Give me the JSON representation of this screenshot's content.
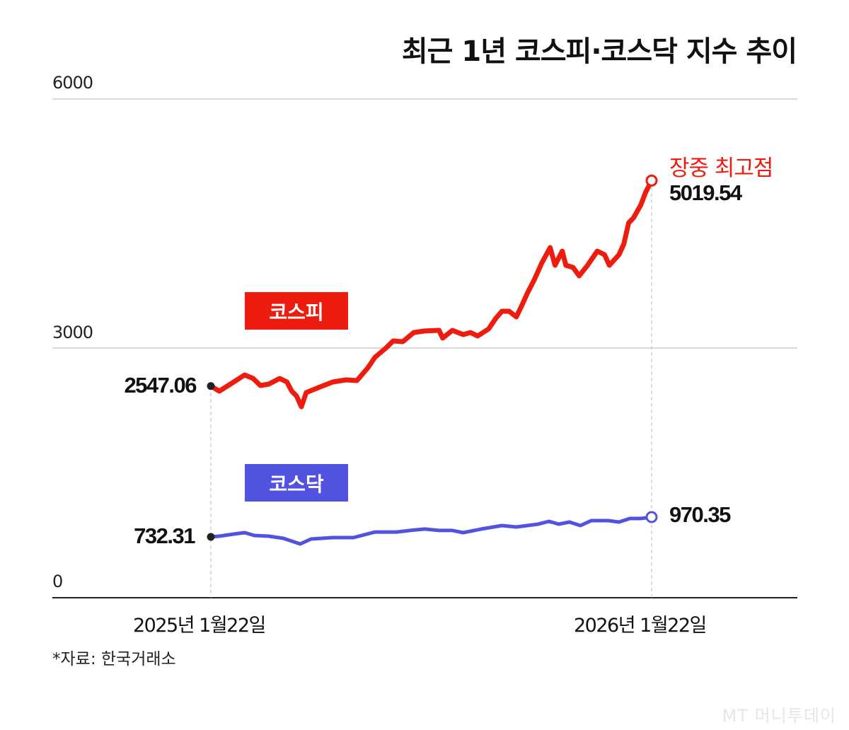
{
  "title": "최근 1년 코스피·코스닥 지수 추이",
  "source": "*자료: 한국거래소",
  "logo": "MT 머니투데이",
  "colors": {
    "kospi": "#ee1c0e",
    "kosdaq": "#5252e0",
    "grid": "#cccccc",
    "axis": "#222222"
  },
  "chart_data": {
    "type": "line",
    "ylim": [
      0,
      6000
    ],
    "yticks": [
      "6000",
      "3000",
      "0"
    ],
    "xticks": [
      "2025년 1월22일",
      "2026년 1월22일"
    ],
    "grid": true,
    "annotation": "장중 최고점",
    "series": [
      {
        "name": "코스피",
        "start_label": "2547.06",
        "end_label": "5019.54",
        "x": [
          "2025-01-22",
          "2025-01-29",
          "2025-02-10",
          "2025-02-19",
          "2025-02-26",
          "2025-03-04",
          "2025-03-11",
          "2025-03-20",
          "2025-03-26",
          "2025-03-30",
          "2025-04-03",
          "2025-04-07",
          "2025-04-11",
          "2025-04-21",
          "2025-05-03",
          "2025-05-14",
          "2025-05-23",
          "2025-06-01",
          "2025-06-07",
          "2025-06-16",
          "2025-06-22",
          "2025-06-30",
          "2025-07-09",
          "2025-07-18",
          "2025-07-30",
          "2025-08-02",
          "2025-08-10",
          "2025-08-19",
          "2025-08-25",
          "2025-08-31",
          "2025-09-09",
          "2025-09-15",
          "2025-09-20",
          "2025-09-26",
          "2025-10-02",
          "2025-10-07",
          "2025-10-11",
          "2025-10-17",
          "2025-10-23",
          "2025-10-30",
          "2025-11-03",
          "2025-11-09",
          "2025-11-12",
          "2025-11-18",
          "2025-11-23",
          "2025-11-30",
          "2025-12-08",
          "2025-12-14",
          "2025-12-18",
          "2025-12-26",
          "2025-12-30",
          "2026-01-03",
          "2026-01-07",
          "2026-01-13",
          "2026-01-17",
          "2026-01-22"
        ],
        "values": [
          2547.06,
          2485,
          2596,
          2681,
          2638,
          2553,
          2570,
          2638,
          2596,
          2485,
          2426,
          2298,
          2468,
          2528,
          2596,
          2621,
          2613,
          2766,
          2894,
          3004,
          3089,
          3081,
          3191,
          3209,
          3217,
          3123,
          3217,
          3166,
          3191,
          3149,
          3234,
          3362,
          3447,
          3447,
          3379,
          3532,
          3660,
          3830,
          4026,
          4213,
          4000,
          4170,
          4000,
          3974,
          3872,
          4000,
          4170,
          4128,
          4000,
          4128,
          4255,
          4511,
          4570,
          4723,
          4877,
          5019.54
        ]
      },
      {
        "name": "코스닥",
        "start_label": "732.31",
        "end_label": "970.35",
        "x": [
          "2025-01-22",
          "2025-01-29",
          "2025-02-10",
          "2025-02-19",
          "2025-02-27",
          "2025-03-11",
          "2025-03-23",
          "2025-03-30",
          "2025-04-06",
          "2025-04-15",
          "2025-05-03",
          "2025-05-20",
          "2025-06-07",
          "2025-06-25",
          "2025-07-06",
          "2025-07-18",
          "2025-07-30",
          "2025-08-10",
          "2025-08-19",
          "2025-09-03",
          "2025-09-20",
          "2025-10-02",
          "2025-10-20",
          "2025-10-29",
          "2025-11-06",
          "2025-11-15",
          "2025-11-24",
          "2025-12-03",
          "2025-12-17",
          "2025-12-26",
          "2026-01-04",
          "2026-01-13",
          "2026-01-22"
        ],
        "values": [
          732.31,
          740,
          766,
          783,
          749,
          740,
          715,
          681,
          647,
          706,
          723,
          723,
          791,
          791,
          809,
          826,
          809,
          809,
          783,
          826,
          868,
          851,
          885,
          919,
          885,
          911,
          868,
          928,
          928,
          911,
          953,
          953,
          970.35
        ]
      }
    ]
  }
}
